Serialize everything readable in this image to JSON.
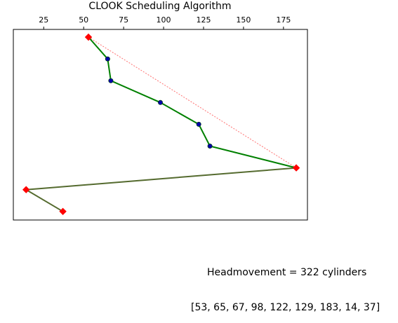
{
  "chart_data": {
    "type": "line",
    "title": "CLOOK Scheduling Algorithm",
    "xlabel": "",
    "ylabel": "",
    "xlim": [
      6,
      190
    ],
    "x_ticks": [
      25,
      50,
      75,
      100,
      125,
      150,
      175
    ],
    "x_axis_position": "top",
    "y_ticks_visible": false,
    "grid": false,
    "sequence": [
      53,
      65,
      67,
      98,
      122,
      129,
      183,
      14,
      37
    ],
    "endpoint_indices": [
      0,
      6,
      7,
      8
    ],
    "series": [
      {
        "role": "service-path",
        "color": "#008000",
        "marker_color": "#0000aa",
        "values": [
          53,
          65,
          67,
          98,
          122,
          129,
          183,
          14,
          37
        ]
      },
      {
        "role": "jump-path",
        "color": "#556b2f",
        "values": [
          183,
          14,
          37
        ]
      },
      {
        "role": "reference-line",
        "color": "#ff4d4d",
        "style": "dashed",
        "values": [
          53,
          183
        ]
      }
    ],
    "endpoint_marker_color": "#ff0000"
  },
  "text": {
    "headmovement": "Headmovement = 322 cylinders",
    "sequence_display": "[53, 65, 67, 98, 122, 129, 183, 14, 37]"
  }
}
